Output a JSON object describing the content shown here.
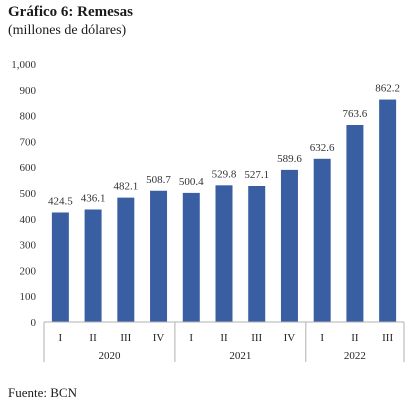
{
  "title": "Gráfico 6:  Remesas",
  "subtitle": "(millones de dólares)",
  "source": "Fuente: BCN",
  "chart_data": {
    "type": "bar",
    "categories": [
      "I",
      "II",
      "III",
      "IV",
      "I",
      "II",
      "III",
      "IV",
      "I",
      "II",
      "III"
    ],
    "groups": [
      {
        "label": "2020",
        "count": 4
      },
      {
        "label": "2021",
        "count": 4
      },
      {
        "label": "2022",
        "count": 3
      }
    ],
    "values": [
      424.5,
      436.1,
      482.1,
      508.7,
      500.4,
      529.8,
      527.1,
      589.6,
      632.6,
      763.6,
      862.2
    ],
    "value_labels": [
      "424.5",
      "436.1",
      "482.1",
      "508.7",
      "500.4",
      "529.8",
      "527.1",
      "589.6",
      "632.6",
      "763.6",
      "862.2"
    ],
    "y_ticks": [
      "0",
      "100",
      "200",
      "300",
      "400",
      "500",
      "600",
      "700",
      "800",
      "900",
      "1,000"
    ],
    "ylim": [
      0,
      1000
    ],
    "grid": false,
    "bar_color": "#3a5ea2",
    "xlabel": "",
    "ylabel": ""
  }
}
